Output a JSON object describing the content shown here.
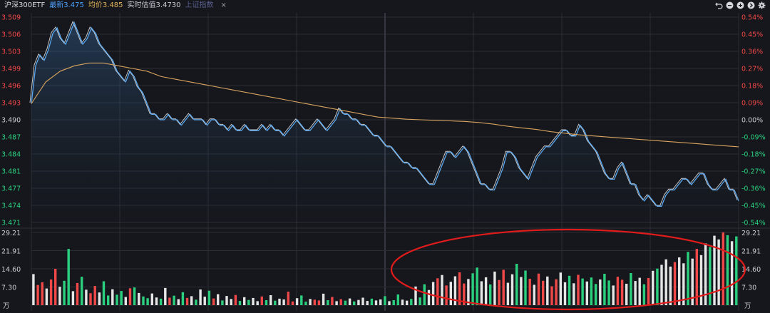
{
  "header": {
    "title": "沪深300ETF",
    "latest": "最新3.475",
    "average": "均价3.485",
    "estimate": "实时估值3.4730",
    "index_link": "上证指数",
    "close_glyph": "×"
  },
  "toolbar": {
    "icons": [
      "undo-icon",
      "minus-circle-icon",
      "plus-circle-icon",
      "arrow-right-circle-icon",
      "gear-icon"
    ]
  },
  "colors": {
    "background": "#15171c",
    "grid": "#2a2d35",
    "price_line": "#5aa7ef",
    "white_line": "#e6e6e6",
    "avg_line": "#d8a35e",
    "up": "#f04848",
    "down": "#2bd07f",
    "neutral": "#e6e6e6",
    "annotation": "#e01b1b"
  },
  "chart_data": {
    "type": "line",
    "title": "",
    "price_axis": {
      "ticks_left": [
        "3.509",
        "3.506",
        "3.503",
        "3.499",
        "3.496",
        "3.493",
        "3.490",
        "3.487",
        "3.484",
        "3.481",
        "3.477",
        "3.474",
        "3.471"
      ],
      "ticks_right": [
        "0.54%",
        "0.45%",
        "0.36%",
        "0.27%",
        "0.18%",
        "0.09%",
        "0.00%",
        "-0.09%",
        "-0.18%",
        "-0.27%",
        "-0.36%",
        "-0.45%",
        "-0.54%"
      ],
      "ylim": [
        3.471,
        3.509
      ],
      "prev_close": 3.49
    },
    "volume_axis": {
      "ticks": [
        "29.21",
        "21.91",
        "14.60",
        "7.30"
      ],
      "unit": "万",
      "ylim": [
        0,
        29.21
      ]
    },
    "series": [
      {
        "name": "",
        "kind": "price",
        "values": [
          3.493,
          3.5,
          3.502,
          3.501,
          3.503,
          3.506,
          3.507,
          3.505,
          3.504,
          3.506,
          3.508,
          3.506,
          3.504,
          3.505,
          3.507,
          3.506,
          3.504,
          3.503,
          3.502,
          3.501,
          3.499,
          3.498,
          3.497,
          3.499,
          3.498,
          3.496,
          3.495,
          3.493,
          3.491,
          3.491,
          3.49,
          3.49,
          3.491,
          3.49,
          3.49,
          3.489,
          3.49,
          3.491,
          3.49,
          3.49,
          3.49,
          3.489,
          3.49,
          3.49,
          3.489,
          3.489,
          3.488,
          3.489,
          3.488,
          3.488,
          3.489,
          3.488,
          3.488,
          3.488,
          3.489,
          3.488,
          3.489,
          3.488,
          3.488,
          3.487,
          3.488,
          3.489,
          3.49,
          3.489,
          3.488,
          3.488,
          3.489,
          3.49,
          3.489,
          3.488,
          3.489,
          3.49,
          3.492,
          3.491,
          3.491,
          3.49,
          3.49,
          3.489,
          3.489,
          3.488,
          3.487,
          3.487,
          3.486,
          3.485,
          3.485,
          3.484,
          3.483,
          3.482,
          3.482,
          3.481,
          3.481,
          3.48,
          3.479,
          3.478,
          3.478,
          3.48,
          3.482,
          3.484,
          3.484,
          3.483,
          3.484,
          3.485,
          3.484,
          3.482,
          3.48,
          3.478,
          3.478,
          3.477,
          3.477,
          3.479,
          3.481,
          3.484,
          3.484,
          3.483,
          3.481,
          3.48,
          3.479,
          3.481,
          3.483,
          3.484,
          3.485,
          3.485,
          3.486,
          3.487,
          3.488,
          3.488,
          3.487,
          3.487,
          3.489,
          3.488,
          3.486,
          3.485,
          3.484,
          3.482,
          3.48,
          3.479,
          3.479,
          3.481,
          3.482,
          3.48,
          3.478,
          3.478,
          3.476,
          3.475,
          3.476,
          3.475,
          3.474,
          3.474,
          3.476,
          3.477,
          3.477,
          3.478,
          3.479,
          3.479,
          3.478,
          3.479,
          3.48,
          3.48,
          3.478,
          3.477,
          3.477,
          3.478,
          3.479,
          3.477,
          3.477,
          3.475
        ],
        "color": "#5aa7ef"
      },
      {
        "name": "",
        "kind": "average",
        "values": [
          3.493,
          3.497,
          3.499,
          3.5,
          3.5005,
          3.5005,
          3.5,
          3.4995,
          3.499,
          3.498,
          3.4975,
          3.497,
          3.4965,
          3.496,
          3.4955,
          3.495,
          3.4945,
          3.494,
          3.4935,
          3.493,
          3.4925,
          3.492,
          3.4915,
          3.491,
          3.4905,
          3.4903,
          3.4901,
          3.49,
          3.4899,
          3.4898,
          3.4897,
          3.4895,
          3.4892,
          3.4888,
          3.4885,
          3.4882,
          3.4878,
          3.4875,
          3.4872,
          3.487,
          3.4868,
          3.4866,
          3.4864,
          3.4862,
          3.486,
          3.4858,
          3.4856,
          3.4854,
          3.4852,
          3.485
        ],
        "color": "#d8a35e"
      },
      {
        "name": "",
        "kind": "volume",
        "values": [
          12.5,
          8.1,
          9.2,
          6.7,
          10.3,
          14.6,
          7.4,
          9.8,
          22.6,
          5.6,
          8.9,
          11.4,
          6.2,
          4.8,
          7.7,
          5.1,
          9.6,
          3.9,
          6.4,
          4.2,
          5.7,
          3.3,
          6.8,
          7.1,
          4.9,
          3.5,
          2.8,
          4.7,
          3.1,
          2.6,
          6.9,
          3.0,
          3.8,
          2.4,
          5.2,
          2.9,
          3.6,
          2.2,
          6.3,
          3.4,
          5.8,
          2.7,
          4.4,
          1.9,
          3.7,
          2.5,
          4.1,
          1.7,
          3.2,
          2.1,
          2.9,
          1.6,
          3.5,
          2.0,
          4.0,
          1.8,
          2.6,
          2.3,
          5.4,
          1.5,
          2.8,
          3.9,
          1.4,
          2.5,
          2.2,
          1.9,
          4.6,
          2.0,
          3.3,
          1.6,
          2.4,
          1.8,
          2.7,
          1.5,
          2.1,
          3.0,
          1.7,
          2.6,
          1.9,
          2.3,
          3.6,
          1.6,
          2.0,
          4.3,
          2.2,
          1.8,
          2.5,
          7.5,
          3.1,
          8.4,
          6.1,
          9.3,
          10.8,
          12.1,
          7.9,
          9.4,
          11.6,
          13.2,
          8.7,
          10.5,
          12.8,
          15.1,
          9.6,
          11.2,
          8.3,
          13.5,
          10.1,
          14.2,
          9.0,
          12.4,
          16.6,
          11.3,
          13.9,
          10.6,
          8.2,
          12.7,
          9.8,
          11.5,
          7.6,
          10.4,
          13.1,
          9.2,
          11.8,
          8.8,
          12.2,
          10.7,
          9.5,
          11.1,
          8.5,
          10.3,
          12.6,
          9.9,
          7.9,
          11.4,
          10.2,
          8.6,
          12.9,
          9.7,
          11.0,
          8.4,
          10.9,
          13.8,
          14.7,
          16.2,
          18.4,
          15.5,
          17.3,
          19.2,
          16.8,
          21.4,
          18.7,
          22.6,
          20.1,
          24.8,
          23.3,
          27.9,
          26.4,
          29.2,
          28.1,
          25.7,
          27.6
        ],
        "color": "#e6e6e6"
      }
    ],
    "grid": true,
    "annotation": {
      "shape": "ellipse",
      "note": "red ellipse around afternoon volume bars"
    }
  }
}
